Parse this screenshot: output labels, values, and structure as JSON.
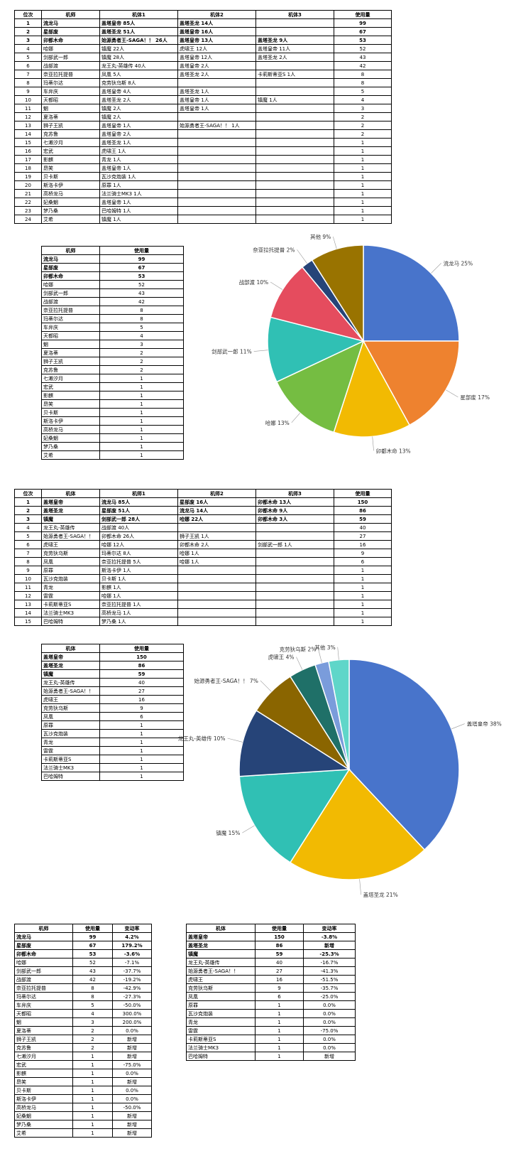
{
  "table1": {
    "headers": [
      "位次",
      "机师",
      "机体1",
      "机体2",
      "机体3",
      "使用量"
    ],
    "rows": [
      [
        "1",
        "流龙马",
        "盖塔皇帝 85人",
        "盖塔圣龙 14人",
        "",
        "99"
      ],
      [
        "2",
        "星部废",
        "盖塔圣龙 51人",
        "盖塔皇帝 16人",
        "",
        "67"
      ],
      [
        "3",
        "卯都木命",
        "始源勇者王-SAGA！！ 26人",
        "盖塔皇帝 13人",
        "盖塔圣龙 9人",
        "53"
      ],
      [
        "4",
        "哈娜",
        "镇魔 22人",
        "虎啸王 12人",
        "盖塔皇帝 11人",
        "52"
      ],
      [
        "5",
        "剑部武一郎",
        "镇魔 28人",
        "盖塔皇帝 12人",
        "盖塔圣龙 2人",
        "43"
      ],
      [
        "6",
        "战部渡",
        "龙王丸-英雄传 40人",
        "盖塔皇帝 2人",
        "",
        "42"
      ],
      [
        "7",
        "奈亚拉托提普",
        "凤凰 5人",
        "盖塔圣龙 2人",
        "卡莉斯蒂亚S 1人",
        "8"
      ],
      [
        "8",
        "玛蒂尔达",
        "克劳狄乌斯 8人",
        "",
        "",
        "8"
      ],
      [
        "9",
        "车弁庆",
        "盖塔皇帝 4人",
        "盖塔圣龙 1人",
        "",
        "5"
      ],
      [
        "10",
        "天都昭",
        "盖塔圣龙 2人",
        "盖塔皇帝 1人",
        "镇魔 1人",
        "4"
      ],
      [
        "11",
        "魍",
        "镇魔 2人",
        "盖塔皇帝 1人",
        "",
        "3"
      ],
      [
        "12",
        "夏洛蒂",
        "镇魔 2人",
        "",
        "",
        "2"
      ],
      [
        "13",
        "狮子王凯",
        "盖塔皇帝 1人",
        "始源勇者王-SAGA！！ 1人",
        "",
        "2"
      ],
      [
        "14",
        "克苏鲁",
        "盖塔皇帝 2人",
        "",
        "",
        "2"
      ],
      [
        "15",
        "七濑汐月",
        "盖塔圣龙 1人",
        "",
        "",
        "1"
      ],
      [
        "16",
        "宏武",
        "虎啸王 1人",
        "",
        "",
        "1"
      ],
      [
        "17",
        "影麒",
        "青龙 1人",
        "",
        "",
        "1"
      ],
      [
        "18",
        "昂笑",
        "盖塔皇帝 1人",
        "",
        "",
        "1"
      ],
      [
        "19",
        "贝卡斯",
        "瓦沙克炮装 1人",
        "",
        "",
        "1"
      ],
      [
        "20",
        "斯洛卡伊",
        "原罪 1人",
        "",
        "",
        "1"
      ],
      [
        "21",
        "高桥龙马",
        "法兰骑士MK3 1人",
        "",
        "",
        "1"
      ],
      [
        "22",
        "妃桑魍",
        "盖塔皇帝 1人",
        "",
        "",
        "1"
      ],
      [
        "23",
        "梦乃桑",
        "巴哈姆特 1人",
        "",
        "",
        "1"
      ],
      [
        "24",
        "艾希",
        "镇魔 1人",
        "",
        "",
        "1"
      ]
    ]
  },
  "table2": {
    "headers": [
      "机师",
      "使用量"
    ],
    "rows": [
      [
        "流龙马",
        "99"
      ],
      [
        "星部废",
        "67"
      ],
      [
        "卯都木命",
        "53"
      ],
      [
        "哈娜",
        "52"
      ],
      [
        "剑部武一郎",
        "43"
      ],
      [
        "战部渡",
        "42"
      ],
      [
        "奈亚拉托提普",
        "8"
      ],
      [
        "玛蒂尔达",
        "8"
      ],
      [
        "车弁庆",
        "5"
      ],
      [
        "天都昭",
        "4"
      ],
      [
        "魍",
        "3"
      ],
      [
        "夏洛蒂",
        "2"
      ],
      [
        "狮子王凯",
        "2"
      ],
      [
        "克苏鲁",
        "2"
      ],
      [
        "七濑汐月",
        "1"
      ],
      [
        "宏武",
        "1"
      ],
      [
        "影麒",
        "1"
      ],
      [
        "昂笑",
        "1"
      ],
      [
        "贝卡斯",
        "1"
      ],
      [
        "斯洛卡伊",
        "1"
      ],
      [
        "高桥龙马",
        "1"
      ],
      [
        "妃桑魍",
        "1"
      ],
      [
        "梦乃桑",
        "1"
      ],
      [
        "艾希",
        "1"
      ]
    ]
  },
  "table3": {
    "headers": [
      "位次",
      "机体",
      "机师1",
      "机师2",
      "机师3",
      "使用量"
    ],
    "rows": [
      [
        "1",
        "盖塔皇帝",
        "流龙马 85人",
        "星部废 16人",
        "卯都木命 13人",
        "150"
      ],
      [
        "2",
        "盖塔圣龙",
        "星部废 51人",
        "流龙马 14人",
        "卯都木命 9人",
        "86"
      ],
      [
        "3",
        "镇魔",
        "剑部武一郎 28人",
        "哈娜 22人",
        "卯都木命 3人",
        "59"
      ],
      [
        "4",
        "龙王丸-英雄传",
        "战部渡 40人",
        "",
        "",
        "40"
      ],
      [
        "5",
        "始源勇者王-SAGA！！",
        "卯都木命 26人",
        "狮子王凯 1人",
        "",
        "27"
      ],
      [
        "6",
        "虎啸王",
        "哈娜 12人",
        "卯都木命 2人",
        "剑部武一郎 1人",
        "16"
      ],
      [
        "7",
        "克劳狄乌斯",
        "玛蒂尔达 8人",
        "哈娜 1人",
        "",
        "9"
      ],
      [
        "8",
        "凤凰",
        "奈亚拉托提普 5人",
        "哈娜 1人",
        "",
        "6"
      ],
      [
        "9",
        "原罪",
        "斯洛卡伊 1人",
        "",
        "",
        "1"
      ],
      [
        "10",
        "瓦沙克炮装",
        "贝卡斯 1人",
        "",
        "",
        "1"
      ],
      [
        "11",
        "青龙",
        "影麒 1人",
        "",
        "",
        "1"
      ],
      [
        "12",
        "雷霆",
        "哈娜 1人",
        "",
        "",
        "1"
      ],
      [
        "13",
        "卡莉斯蒂亚S",
        "奈亚拉托提普 1人",
        "",
        "",
        "1"
      ],
      [
        "14",
        "法兰骑士MK3",
        "高桥龙马 1人",
        "",
        "",
        "1"
      ],
      [
        "15",
        "巴哈姆特",
        "梦乃桑 1人",
        "",
        "",
        "1"
      ]
    ]
  },
  "table4": {
    "headers": [
      "机体",
      "使用量"
    ],
    "rows": [
      [
        "盖塔皇帝",
        "150"
      ],
      [
        "盖塔圣龙",
        "86"
      ],
      [
        "镇魔",
        "59"
      ],
      [
        "龙王丸-英雄传",
        "40"
      ],
      [
        "始源勇者王-SAGA！！",
        "27"
      ],
      [
        "虎啸王",
        "16"
      ],
      [
        "克劳狄乌斯",
        "9"
      ],
      [
        "凤凰",
        "6"
      ],
      [
        "原罪",
        "1"
      ],
      [
        "瓦沙克炮装",
        "1"
      ],
      [
        "青龙",
        "1"
      ],
      [
        "雷霆",
        "1"
      ],
      [
        "卡莉斯蒂亚S",
        "1"
      ],
      [
        "法兰骑士MK3",
        "1"
      ],
      [
        "巴哈姆特",
        "1"
      ]
    ]
  },
  "table5": {
    "headers": [
      "机师",
      "使用量",
      "变动率"
    ],
    "rows": [
      [
        "流龙马",
        "99",
        "4.2%"
      ],
      [
        "星部废",
        "67",
        "179.2%"
      ],
      [
        "卯都木命",
        "53",
        "-3.6%"
      ],
      [
        "哈娜",
        "52",
        "-7.1%"
      ],
      [
        "剑部武一郎",
        "43",
        "-37.7%"
      ],
      [
        "战部渡",
        "42",
        "-19.2%"
      ],
      [
        "奈亚拉托提普",
        "8",
        "-42.9%"
      ],
      [
        "玛蒂尔达",
        "8",
        "-27.3%"
      ],
      [
        "车弁庆",
        "5",
        "-50.0%"
      ],
      [
        "天都昭",
        "4",
        "300.0%"
      ],
      [
        "魍",
        "3",
        "200.0%"
      ],
      [
        "夏洛蒂",
        "2",
        "0.0%"
      ],
      [
        "狮子王凯",
        "2",
        "新增"
      ],
      [
        "克苏鲁",
        "2",
        "新增"
      ],
      [
        "七濑汐月",
        "1",
        "新增"
      ],
      [
        "宏武",
        "1",
        "-75.0%"
      ],
      [
        "影麒",
        "1",
        "0.0%"
      ],
      [
        "昂笑",
        "1",
        "新增"
      ],
      [
        "贝卡斯",
        "1",
        "0.0%"
      ],
      [
        "斯洛卡伊",
        "1",
        "0.0%"
      ],
      [
        "高桥龙马",
        "1",
        "-50.0%"
      ],
      [
        "妃桑魍",
        "1",
        "新增"
      ],
      [
        "梦乃桑",
        "1",
        "新增"
      ],
      [
        "艾希",
        "1",
        "新增"
      ]
    ]
  },
  "table6": {
    "headers": [
      "机体",
      "使用量",
      "变动率"
    ],
    "rows": [
      [
        "盖塔皇帝",
        "150",
        "-3.8%"
      ],
      [
        "盖塔圣龙",
        "86",
        "新增"
      ],
      [
        "镇魔",
        "59",
        "-25.3%"
      ],
      [
        "龙王丸-英雄传",
        "40",
        "-16.7%"
      ],
      [
        "始源勇者王-SAGA！！",
        "27",
        "-41.3%"
      ],
      [
        "虎啸王",
        "16",
        "-51.5%"
      ],
      [
        "克劳狄乌斯",
        "9",
        "-35.7%"
      ],
      [
        "凤凰",
        "6",
        "-25.0%"
      ],
      [
        "原罪",
        "1",
        "0.0%"
      ],
      [
        "瓦沙克炮装",
        "1",
        "0.0%"
      ],
      [
        "青龙",
        "1",
        "0.0%"
      ],
      [
        "雷霆",
        "1",
        "-75.0%"
      ],
      [
        "卡莉斯蒂亚S",
        "1",
        "0.0%"
      ],
      [
        "法兰骑士MK3",
        "1",
        "0.0%"
      ],
      [
        "巴哈姆特",
        "1",
        "新增"
      ]
    ]
  },
  "chart_data": [
    {
      "type": "pie",
      "title": "",
      "slices": [
        {
          "label": "流龙马",
          "value": 25,
          "color": "#4874cb"
        },
        {
          "label": "星部废",
          "value": 17,
          "color": "#ee822f"
        },
        {
          "label": "卯都木命",
          "value": 13,
          "color": "#f2ba02"
        },
        {
          "label": "哈娜",
          "value": 13,
          "color": "#75bd42"
        },
        {
          "label": "剑部武一郎",
          "value": 11,
          "color": "#30c0b4"
        },
        {
          "label": "战部渡",
          "value": 10,
          "color": "#e54c5e"
        },
        {
          "label": "奈亚拉托提普",
          "value": 2,
          "color": "#264478"
        },
        {
          "label": "其他",
          "value": 9,
          "color": "#997300"
        }
      ]
    },
    {
      "type": "pie",
      "title": "",
      "slices": [
        {
          "label": "盖塔皇帝",
          "value": 38,
          "color": "#4874cb"
        },
        {
          "label": "盖塔圣龙",
          "value": 21,
          "color": "#f2ba02"
        },
        {
          "label": "镇魔",
          "value": 15,
          "color": "#30c0b4"
        },
        {
          "label": "龙王丸-英雄传",
          "value": 10,
          "color": "#264478"
        },
        {
          "label": "始源勇者王-SAGA！！",
          "value": 7,
          "color": "#8a6500"
        },
        {
          "label": "虎啸王",
          "value": 4,
          "color": "#1f7068"
        },
        {
          "label": "克劳狄乌斯",
          "value": 2,
          "color": "#7a9cdb"
        },
        {
          "label": "其他",
          "value": 3,
          "color": "#5fd6c9"
        }
      ]
    }
  ]
}
